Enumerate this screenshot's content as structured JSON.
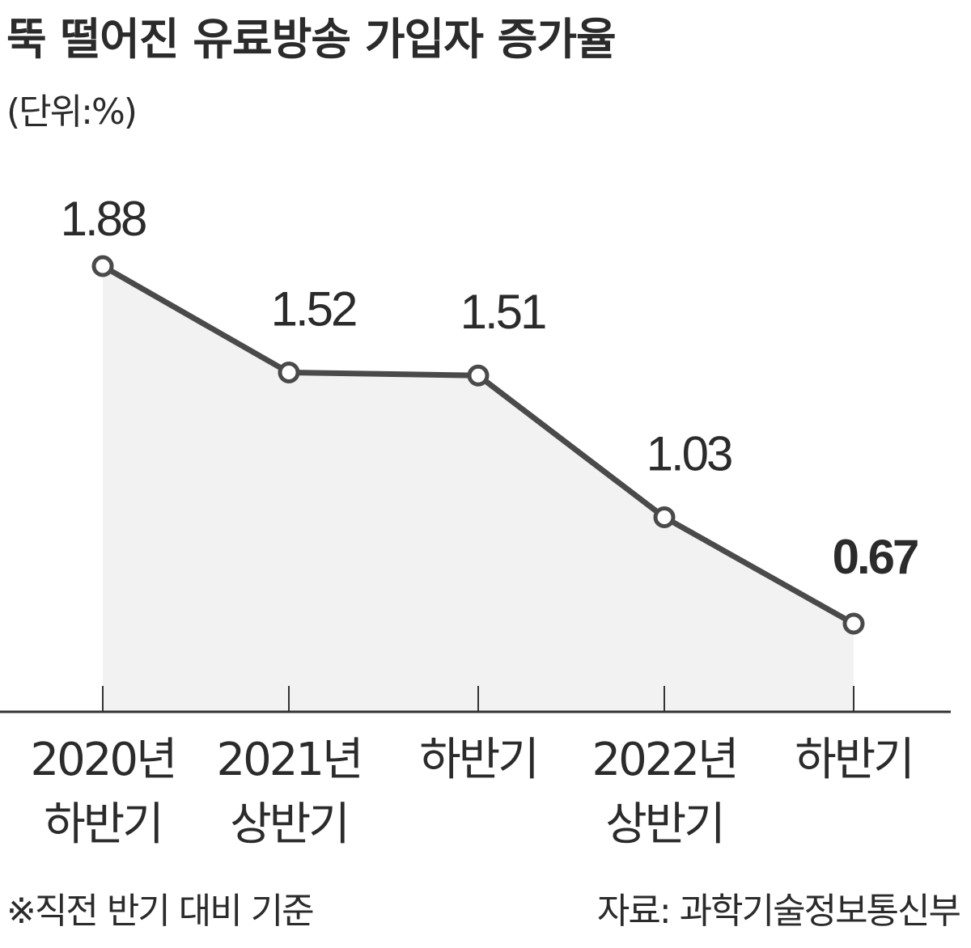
{
  "title": "뚝 떨어진 유료방송 가입자 증가율",
  "unit_label": "(단위:%)",
  "footnote": "※직전 반기 대비 기준",
  "source": "자료: 과학기술정보통신부",
  "colors": {
    "line": "#4a4a4a",
    "area": "#f2f2f2",
    "text": "#2b2b2b",
    "axis": "#333333",
    "marker_fill": "#ffffff"
  },
  "chart_data": {
    "type": "area",
    "title": "뚝 떨어진 유료방송 가입자 증가율",
    "ylabel": "(단위:%)",
    "categories": [
      [
        "2020년",
        "하반기"
      ],
      [
        "2021년",
        "상반기"
      ],
      [
        "하반기"
      ],
      [
        "2022년",
        "상반기"
      ],
      [
        "하반기"
      ]
    ],
    "values": [
      1.88,
      1.52,
      1.51,
      1.03,
      0.67
    ],
    "data_labels": [
      "1.88",
      "1.52",
      "1.51",
      "1.03",
      "0.67"
    ],
    "grid": false,
    "legend": "none"
  }
}
